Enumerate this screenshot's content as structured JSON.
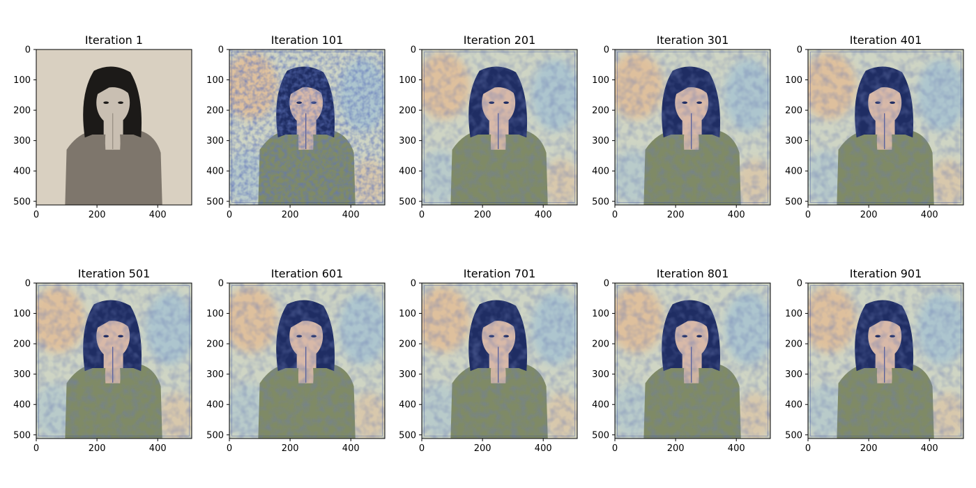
{
  "chart_data": {
    "type": "image-grid",
    "grid": {
      "rows": 2,
      "cols": 5
    },
    "panels": [
      {
        "title": "Iteration 1",
        "iteration": 1,
        "style": "original-sepia"
      },
      {
        "title": "Iteration 101",
        "iteration": 101,
        "style": "stylized-noisy"
      },
      {
        "title": "Iteration 201",
        "iteration": 201,
        "style": "stylized"
      },
      {
        "title": "Iteration 301",
        "iteration": 301,
        "style": "stylized"
      },
      {
        "title": "Iteration 401",
        "iteration": 401,
        "style": "stylized"
      },
      {
        "title": "Iteration 501",
        "iteration": 501,
        "style": "stylized"
      },
      {
        "title": "Iteration 601",
        "iteration": 601,
        "style": "stylized"
      },
      {
        "title": "Iteration 701",
        "iteration": 701,
        "style": "stylized"
      },
      {
        "title": "Iteration 801",
        "iteration": 801,
        "style": "stylized"
      },
      {
        "title": "Iteration 901",
        "iteration": 901,
        "style": "stylized"
      }
    ],
    "xlim": [
      0,
      512
    ],
    "ylim": [
      512,
      0
    ],
    "x_ticks": [
      0,
      200,
      400
    ],
    "y_ticks": [
      0,
      100,
      200,
      300,
      400,
      500
    ],
    "colors": {
      "original_bg": "#d9d0c1",
      "original_figure": "#7e766c",
      "original_hair": "#1c1a18",
      "original_skin": "#c9bfb2",
      "stylized_bg": "#cfd5c4",
      "stylized_warm": "#e4ba90",
      "stylized_cool": "#9fbfd3",
      "stylized_hair": "#1f2d63",
      "stylized_sweater": "#7f8a66",
      "stylized_skin": "#d8b9a8",
      "stylized_accent": "#2b3f95"
    }
  }
}
